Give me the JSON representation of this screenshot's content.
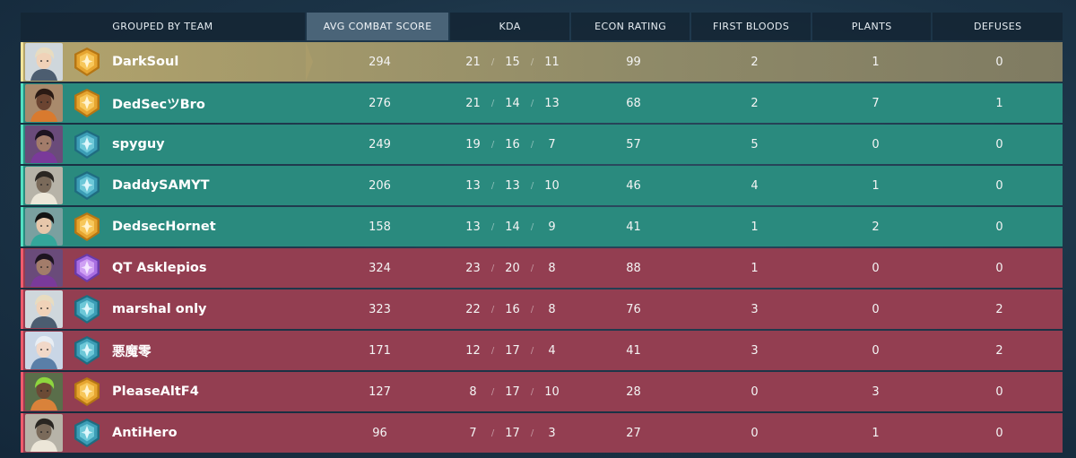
{
  "header": {
    "team": "GROUPED BY TEAM",
    "acs": "AVG COMBAT SCORE",
    "kda": "KDA",
    "econ": "ECON RATING",
    "first_bloods": "FIRST BLOODS",
    "plants": "PLANTS",
    "defuses": "DEFUSES"
  },
  "kda_separator": "/",
  "colors": {
    "self_row": "#b3a46c",
    "ally_row": "#2a8a7e",
    "enemy_row": "#933e51",
    "gold_rank": "#e6a530",
    "platinum_rank": "#3fa0b8",
    "diamond_rank": "#b07ae6"
  },
  "players": [
    {
      "name": "DarkSoul",
      "team": "self",
      "rank": "gold",
      "agent": "sova",
      "acs": "294",
      "k": "21",
      "d": "15",
      "a": "11",
      "econ": "99",
      "fb": "2",
      "plants": "1",
      "defuses": "0"
    },
    {
      "name": "DedSecツBro",
      "team": "ally",
      "rank": "gold",
      "agent": "phoenix",
      "acs": "276",
      "k": "21",
      "d": "14",
      "a": "13",
      "econ": "68",
      "fb": "2",
      "plants": "7",
      "defuses": "1"
    },
    {
      "name": "spyguy",
      "team": "ally",
      "rank": "platinum",
      "agent": "reyna",
      "acs": "249",
      "k": "19",
      "d": "16",
      "a": "7",
      "econ": "57",
      "fb": "5",
      "plants": "0",
      "defuses": "0"
    },
    {
      "name": "DaddySAMYT",
      "team": "ally",
      "rank": "platinum",
      "agent": "cypher",
      "acs": "206",
      "k": "13",
      "d": "13",
      "a": "10",
      "econ": "46",
      "fb": "4",
      "plants": "1",
      "defuses": "0"
    },
    {
      "name": "DedsecHornet",
      "team": "ally",
      "rank": "gold",
      "agent": "sage",
      "acs": "158",
      "k": "13",
      "d": "14",
      "a": "9",
      "econ": "41",
      "fb": "1",
      "plants": "2",
      "defuses": "0"
    },
    {
      "name": "QT Asklepios",
      "team": "enemy",
      "rank": "diamond",
      "agent": "reyna",
      "acs": "324",
      "k": "23",
      "d": "20",
      "a": "8",
      "econ": "88",
      "fb": "1",
      "plants": "0",
      "defuses": "0"
    },
    {
      "name": "marshal only",
      "team": "enemy",
      "rank": "platinum",
      "agent": "sova",
      "acs": "323",
      "k": "22",
      "d": "16",
      "a": "8",
      "econ": "76",
      "fb": "3",
      "plants": "0",
      "defuses": "2"
    },
    {
      "name": "悪魔零",
      "team": "enemy",
      "rank": "platinum",
      "agent": "jett",
      "acs": "171",
      "k": "12",
      "d": "17",
      "a": "4",
      "econ": "41",
      "fb": "3",
      "plants": "0",
      "defuses": "2"
    },
    {
      "name": "PleaseAltF4",
      "team": "enemy",
      "rank": "gold",
      "agent": "raze",
      "acs": "127",
      "k": "8",
      "d": "17",
      "a": "10",
      "econ": "28",
      "fb": "0",
      "plants": "3",
      "defuses": "0"
    },
    {
      "name": "AntiHero",
      "team": "enemy",
      "rank": "platinum",
      "agent": "cypher",
      "acs": "96",
      "k": "7",
      "d": "17",
      "a": "3",
      "econ": "27",
      "fb": "0",
      "plants": "1",
      "defuses": "0"
    }
  ]
}
